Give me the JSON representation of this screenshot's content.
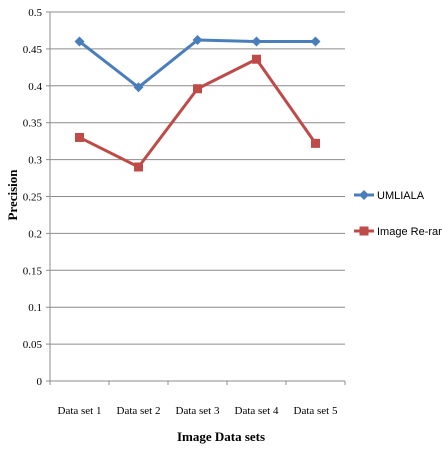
{
  "chart_data": {
    "type": "line",
    "title": "",
    "xlabel": "Image Data sets",
    "ylabel": "Precision",
    "categories": [
      "Data set 1",
      "Data set 2",
      "Data set 3",
      "Data set 4",
      "Data set 5"
    ],
    "ylim": [
      0,
      0.5
    ],
    "yticks": [
      "0",
      "0.05",
      "0.1",
      "0.15",
      "0.2",
      "0.25",
      "0.3",
      "0.35",
      "0.4",
      "0.45",
      "0.5"
    ],
    "grid": true,
    "legend_position": "right",
    "series": [
      {
        "name": "UMLIALA",
        "values": [
          0.46,
          0.398,
          0.462,
          0.46,
          0.46
        ],
        "color": "#4a7ebb",
        "marker": "diamond"
      },
      {
        "name": "Image Re-rank",
        "values": [
          0.33,
          0.29,
          0.396,
          0.436,
          0.322
        ],
        "color": "#be4b48",
        "marker": "square"
      }
    ]
  }
}
